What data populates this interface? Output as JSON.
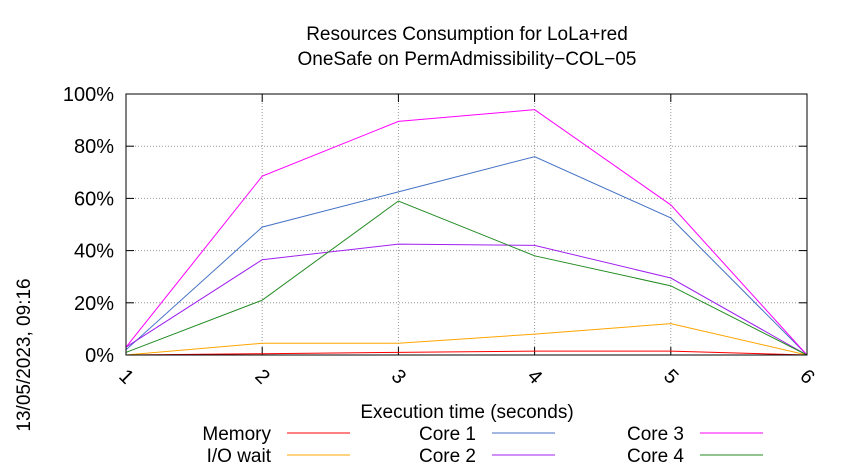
{
  "chart_data": {
    "type": "line",
    "title": [
      "Resources Consumption for LoLa+red",
      "OneSafe on PermAdmissibility−COL−05"
    ],
    "xlabel": "Execution time (seconds)",
    "ylabel": "",
    "side_label": "13/05/2023, 09:16",
    "x": [
      1,
      2,
      3,
      4,
      5,
      6
    ],
    "x_ticks": [
      "1",
      "2",
      "3",
      "4",
      "5",
      "6"
    ],
    "y_ticks": [
      "0%",
      "20%",
      "40%",
      "60%",
      "80%",
      "100%"
    ],
    "xlim": [
      1,
      6
    ],
    "ylim": [
      0,
      100
    ],
    "grid": true,
    "legend_position": "bottom",
    "series": [
      {
        "name": "Memory",
        "color": "#ff0000",
        "values": [
          0,
          0.5,
          1,
          1.5,
          1.5,
          0
        ]
      },
      {
        "name": "I/O wait",
        "color": "#ffa500",
        "values": [
          0,
          4.5,
          4.5,
          8,
          12,
          0
        ]
      },
      {
        "name": "Core 1",
        "color": "#4472c4",
        "values": [
          2,
          49,
          62.5,
          76,
          52.5,
          0
        ]
      },
      {
        "name": "Core 2",
        "color": "#a020f0",
        "values": [
          3,
          36.5,
          42.5,
          42,
          29.5,
          0
        ]
      },
      {
        "name": "Core 3",
        "color": "#ff00ff",
        "values": [
          3,
          68.5,
          89.5,
          94,
          57.5,
          0
        ]
      },
      {
        "name": "Core 4",
        "color": "#228b22",
        "values": [
          1,
          21,
          59,
          38,
          26.5,
          0
        ]
      }
    ]
  }
}
